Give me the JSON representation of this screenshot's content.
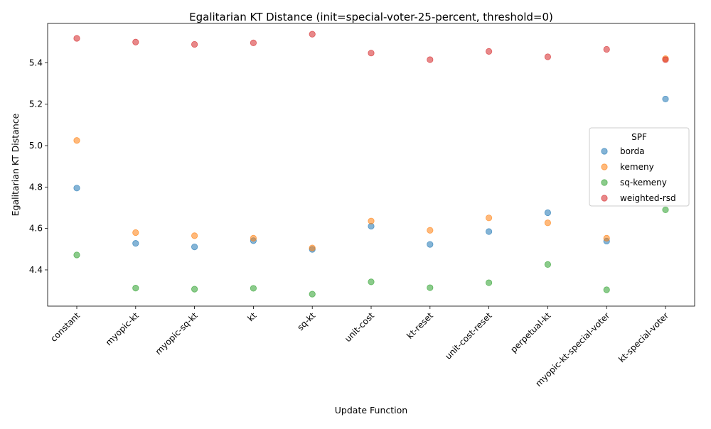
{
  "chart_data": {
    "type": "scatter",
    "title": "Egalitarian KT Distance (init=special-voter-25-percent, threshold=0)",
    "xlabel": "Update Function",
    "ylabel": "Egalitarian KT Distance",
    "categories": [
      "constant",
      "myopic-kt",
      "myopic-sq-kt",
      "kt",
      "sq-kt",
      "unit-cost",
      "kt-reset",
      "unit-cost-reset",
      "perpetual-kt",
      "myopic-kt-special-voter",
      "kt-special-voter"
    ],
    "yticks": [
      "4.4",
      "4.6",
      "4.8",
      "5.0",
      "5.2",
      "5.4"
    ],
    "ylim": [
      4.225,
      5.59
    ],
    "legend": {
      "title": "SPF",
      "position": "center-right"
    },
    "grid": false,
    "series": [
      {
        "name": "borda",
        "color": "#1f77b4",
        "values": [
          4.795,
          4.528,
          4.511,
          4.541,
          4.499,
          4.611,
          4.523,
          4.585,
          4.676,
          4.539,
          5.225
        ]
      },
      {
        "name": "kemeny",
        "color": "#ff7f0e",
        "values": [
          5.025,
          4.58,
          4.565,
          4.553,
          4.506,
          4.636,
          4.591,
          4.651,
          4.627,
          4.553,
          5.42
        ]
      },
      {
        "name": "sq-kemeny",
        "color": "#2ca02c",
        "values": [
          4.472,
          4.312,
          4.307,
          4.311,
          4.283,
          4.342,
          4.314,
          4.338,
          4.426,
          4.304,
          4.69
        ]
      },
      {
        "name": "weighted-rsd",
        "color": "#d62728",
        "values": [
          5.518,
          5.5,
          5.489,
          5.496,
          5.538,
          5.447,
          5.415,
          5.455,
          5.429,
          5.465,
          5.415
        ]
      }
    ]
  }
}
